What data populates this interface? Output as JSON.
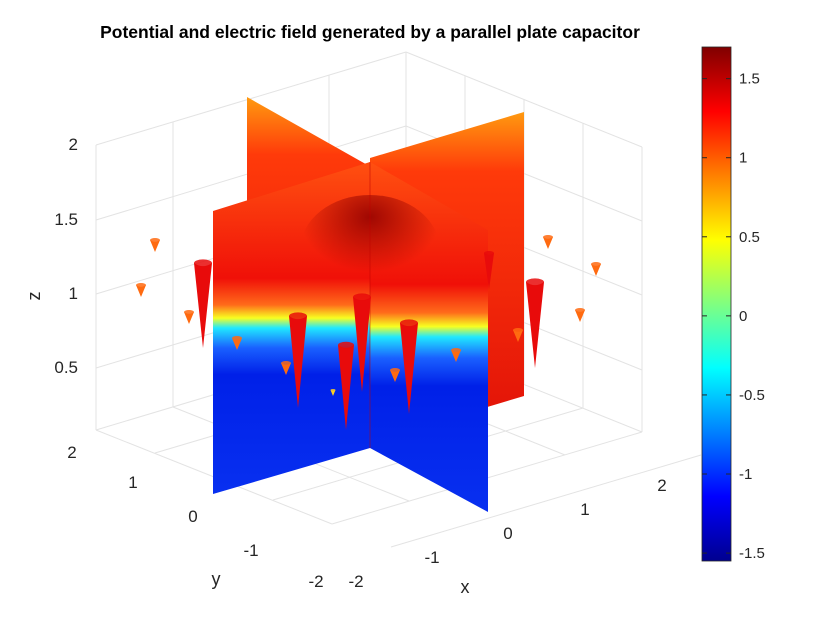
{
  "chart_data": {
    "type": "3d-slice-quiver",
    "title": "Potential and electric field generated by a parallel plate capacitor",
    "xlabel": "x",
    "ylabel": "y",
    "zlabel": "z",
    "xlim": [
      -2,
      2
    ],
    "ylim": [
      -2,
      2
    ],
    "zlim": [
      0.25,
      2
    ],
    "xticks": [
      "-2",
      "-1",
      "0",
      "1",
      "2"
    ],
    "yticks": [
      "-2",
      "-1",
      "0",
      "1",
      "2"
    ],
    "zticks": [
      "0.5",
      "1",
      "1.5",
      "2"
    ],
    "grid": true,
    "colormap": "jet",
    "clim": [
      -1.55,
      1.7
    ],
    "colorbar_ticks": [
      "1.5",
      "1",
      "0.5",
      "0",
      "-0.5",
      "-1",
      "-1.5"
    ],
    "slices": [
      {
        "plane": "x",
        "value": 0
      },
      {
        "plane": "y",
        "value": 0
      }
    ],
    "field_direction": "down (-z)"
  }
}
